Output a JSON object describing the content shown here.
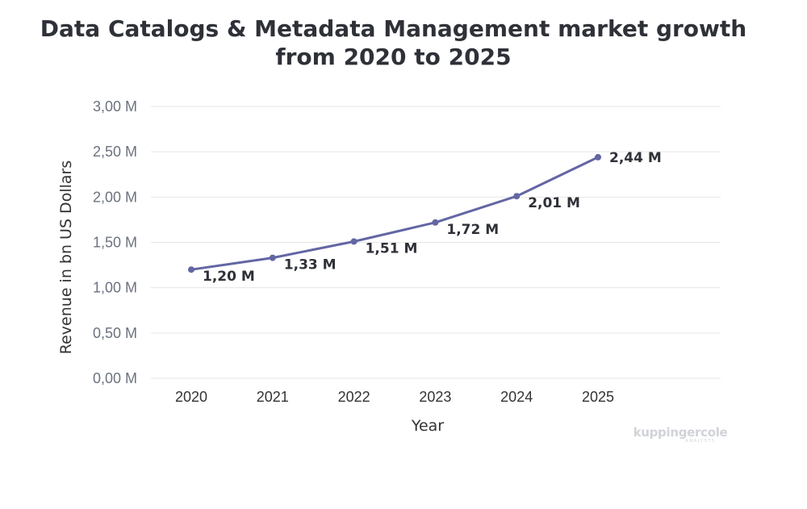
{
  "title_line1": "Data Catalogs & Metadata Management market growth",
  "title_line2": "from 2020 to 2025",
  "watermark": {
    "brand": "kuppingercole",
    "sub": "ANALYSTS"
  },
  "colors": {
    "line": "#6366a3",
    "grid": "#e6e6e6",
    "title": "#2f3138"
  },
  "chart_data": {
    "type": "line",
    "title": "Data Catalogs & Metadata Management market growth from 2020 to 2025",
    "xlabel": "Year",
    "ylabel": "Revenue in bn US Dollars",
    "categories": [
      "2020",
      "2021",
      "2022",
      "2023",
      "2024",
      "2025"
    ],
    "series": [
      {
        "values": [
          1.2,
          1.33,
          1.51,
          1.72,
          2.01,
          2.44
        ],
        "labels": [
          "1,20 M",
          "1,33 M",
          "1,51 M",
          "1,72 M",
          "2,01 M",
          "2,44 M"
        ]
      }
    ],
    "ylim": [
      0,
      3
    ],
    "yticks": [
      0,
      0.5,
      1.0,
      1.5,
      2.0,
      2.5,
      3.0
    ],
    "ytick_labels": [
      "0,00 M",
      "0,50 M",
      "1,00 M",
      "1,50 M",
      "2,00 M",
      "2,50 M",
      "3,00 M"
    ],
    "grid": true,
    "legend": "none"
  }
}
